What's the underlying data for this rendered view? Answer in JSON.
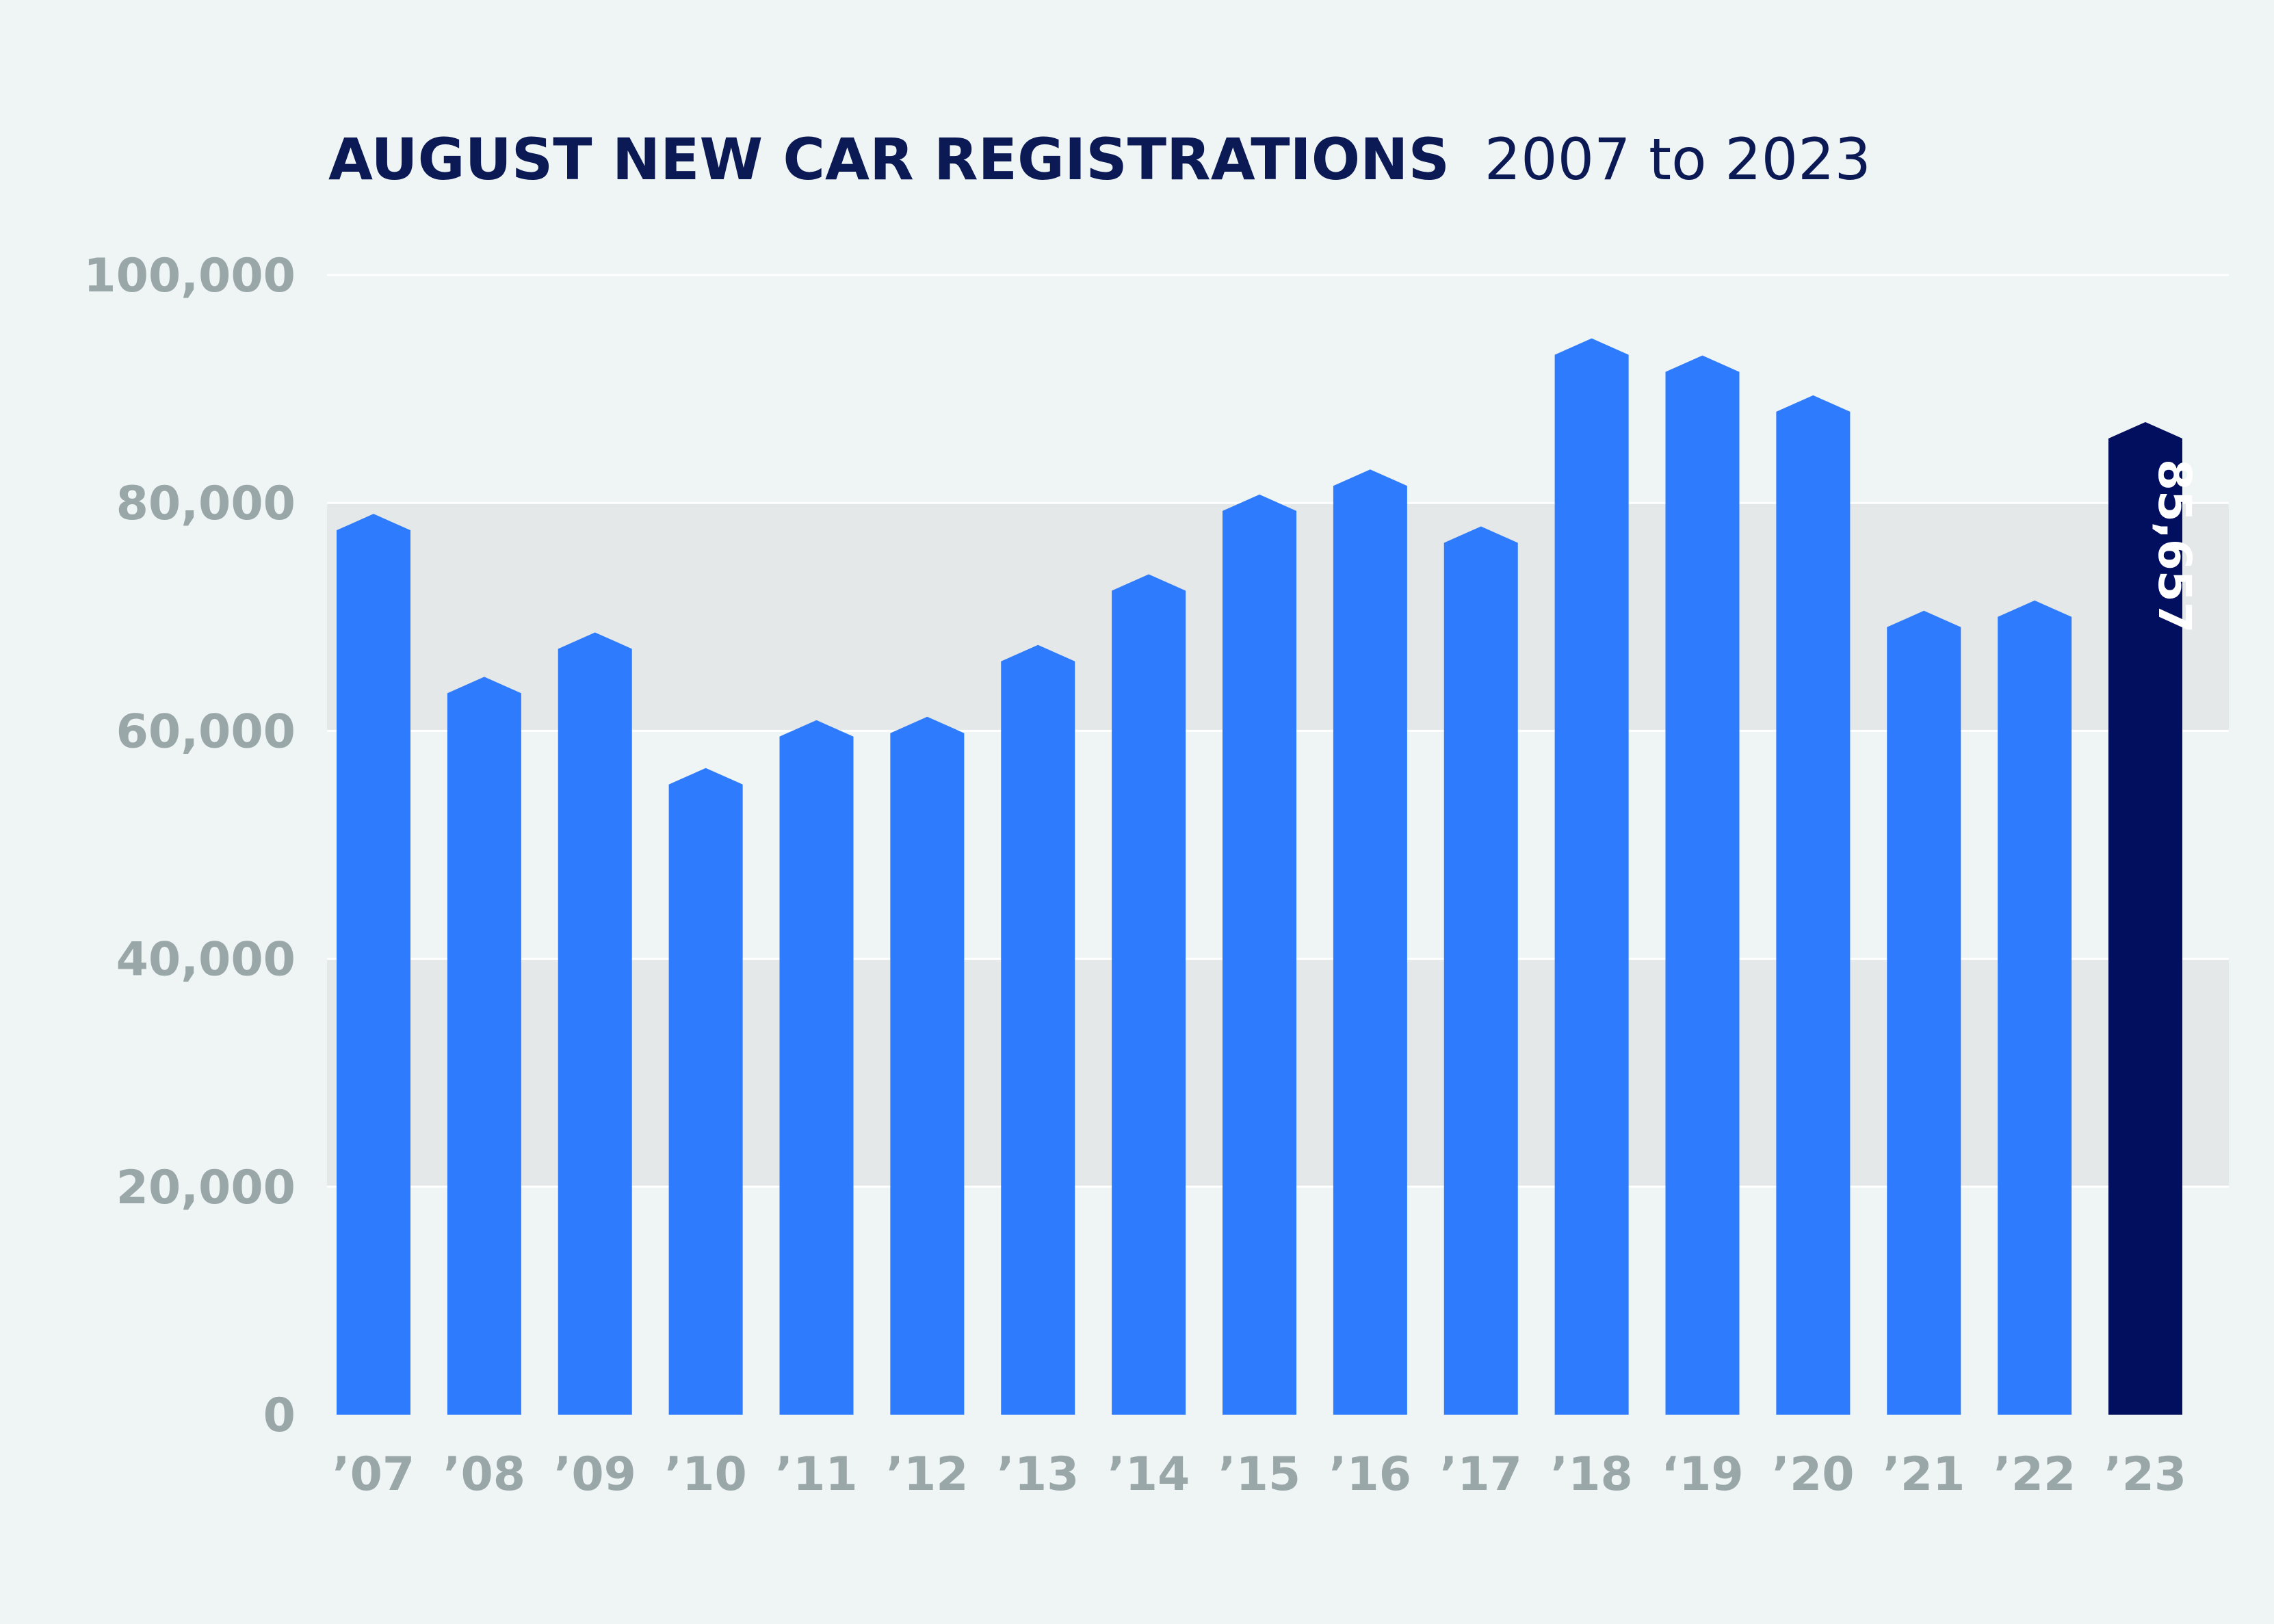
{
  "chart_data": {
    "type": "bar",
    "title": "AUGUST NEW CAR REGISTRATIONS",
    "subtitle": "2007 to 2023",
    "categories": [
      "’07",
      "’08",
      "’09",
      "’10",
      "’11",
      "’12",
      "’13",
      "’14",
      "’15",
      "’16",
      "’17",
      "’18",
      "‘19",
      "’20",
      "’21",
      "’22",
      "’23"
    ],
    "values": [
      77600,
      63300,
      67200,
      55300,
      59500,
      59800,
      66100,
      72300,
      79300,
      81500,
      76500,
      93000,
      91500,
      88000,
      69100,
      70000,
      85657
    ],
    "ylim": [
      0,
      100000
    ],
    "yticks": [
      0,
      20000,
      40000,
      60000,
      80000,
      100000
    ],
    "ytick_labels": [
      "0",
      "20,000",
      "40,000",
      "60,000",
      "80,000",
      "100,000"
    ],
    "grid": true,
    "highlight": {
      "category": "’23",
      "value_label": "85,657"
    },
    "colors": {
      "bar": "#2e7bfd",
      "highlight_bar": "#020e5e",
      "band": "#e4e8e9",
      "background": "#eff4f4",
      "title": "#0b1a55",
      "tick": "#9aa7a8"
    }
  }
}
